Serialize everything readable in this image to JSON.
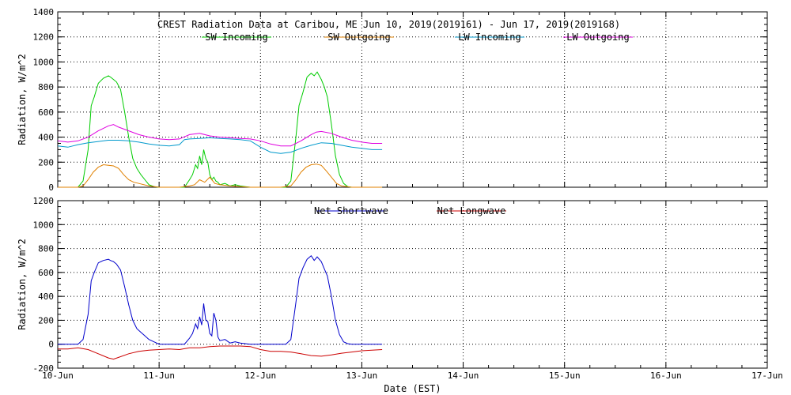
{
  "chart_data": [
    {
      "type": "line",
      "title": "CREST Radiation Data at Caribou, ME   Jun 10, 2019(2019161) - Jun 17, 2019(2019168)",
      "xlabel": "",
      "ylabel": "Radiation, W/m^2",
      "xlim": [
        0,
        7
      ],
      "ylim": [
        0,
        1400
      ],
      "yticks": [
        0,
        200,
        400,
        600,
        800,
        1000,
        1200,
        1400
      ],
      "grid": true,
      "legend": "top",
      "series": [
        {
          "name": "SW Incoming",
          "color": "#00cc00",
          "x": [
            0.0,
            0.15,
            0.2,
            0.25,
            0.3,
            0.33,
            0.36,
            0.4,
            0.45,
            0.5,
            0.52,
            0.55,
            0.58,
            0.62,
            0.66,
            0.7,
            0.74,
            0.78,
            0.82,
            0.86,
            0.9,
            0.95,
            1.0,
            1.05,
            1.1,
            1.2,
            1.25,
            1.3,
            1.33,
            1.36,
            1.38,
            1.4,
            1.42,
            1.44,
            1.46,
            1.48,
            1.5,
            1.52,
            1.54,
            1.56,
            1.58,
            1.6,
            1.65,
            1.7,
            1.75,
            1.8,
            1.85,
            1.9,
            1.95,
            2.0,
            2.1,
            2.2,
            2.25,
            2.3,
            2.35,
            2.38,
            2.42,
            2.46,
            2.5,
            2.53,
            2.56,
            2.6,
            2.63,
            2.66,
            2.7,
            2.74,
            2.78,
            2.82,
            2.86,
            2.9,
            2.95,
            3.0,
            3.1,
            3.2
          ],
          "y": [
            0,
            0,
            0,
            50,
            300,
            650,
            720,
            830,
            870,
            890,
            880,
            860,
            840,
            780,
            600,
            400,
            230,
            150,
            100,
            60,
            20,
            5,
            0,
            0,
            0,
            0,
            0,
            60,
            100,
            180,
            150,
            250,
            180,
            300,
            230,
            200,
            100,
            60,
            80,
            50,
            40,
            20,
            30,
            10,
            20,
            10,
            5,
            0,
            0,
            0,
            0,
            0,
            0,
            50,
            400,
            650,
            760,
            880,
            910,
            890,
            920,
            860,
            800,
            720,
            500,
            250,
            100,
            30,
            5,
            0,
            0,
            0,
            0,
            0
          ]
        },
        {
          "name": "SW Outgoing",
          "color": "#e08000",
          "x": [
            0.0,
            0.15,
            0.2,
            0.25,
            0.3,
            0.35,
            0.4,
            0.45,
            0.5,
            0.55,
            0.6,
            0.65,
            0.7,
            0.75,
            0.8,
            0.9,
            1.0,
            1.1,
            1.2,
            1.3,
            1.35,
            1.4,
            1.45,
            1.5,
            1.55,
            1.6,
            1.7,
            1.8,
            1.9,
            2.0,
            2.1,
            2.2,
            2.3,
            2.35,
            2.4,
            2.45,
            2.5,
            2.55,
            2.6,
            2.65,
            2.7,
            2.75,
            2.8,
            2.9,
            3.0,
            3.2
          ],
          "y": [
            0,
            0,
            0,
            10,
            60,
            120,
            160,
            180,
            175,
            170,
            150,
            100,
            60,
            40,
            30,
            10,
            0,
            0,
            0,
            10,
            20,
            60,
            40,
            80,
            30,
            20,
            10,
            5,
            0,
            0,
            0,
            0,
            10,
            60,
            120,
            160,
            180,
            185,
            175,
            130,
            80,
            30,
            10,
            0,
            0,
            0
          ]
        },
        {
          "name": "LW Incoming",
          "color": "#0099cc",
          "x": [
            0.0,
            0.1,
            0.2,
            0.3,
            0.4,
            0.5,
            0.6,
            0.7,
            0.8,
            0.9,
            1.0,
            1.1,
            1.2,
            1.25,
            1.3,
            1.4,
            1.5,
            1.6,
            1.7,
            1.8,
            1.9,
            2.0,
            2.1,
            2.2,
            2.3,
            2.4,
            2.5,
            2.6,
            2.7,
            2.8,
            2.9,
            3.0,
            3.1,
            3.2
          ],
          "y": [
            330,
            320,
            340,
            355,
            365,
            375,
            375,
            370,
            360,
            345,
            335,
            330,
            340,
            380,
            385,
            390,
            395,
            390,
            385,
            380,
            370,
            320,
            280,
            270,
            280,
            310,
            335,
            355,
            350,
            335,
            320,
            310,
            300,
            300
          ]
        },
        {
          "name": "LW Outgoing",
          "color": "#e000e0",
          "x": [
            0.0,
            0.1,
            0.2,
            0.3,
            0.4,
            0.5,
            0.55,
            0.6,
            0.7,
            0.8,
            0.9,
            1.0,
            1.1,
            1.2,
            1.3,
            1.4,
            1.5,
            1.6,
            1.7,
            1.8,
            1.9,
            2.0,
            2.1,
            2.2,
            2.3,
            2.4,
            2.5,
            2.55,
            2.6,
            2.7,
            2.8,
            2.9,
            3.0,
            3.1,
            3.2
          ],
          "y": [
            370,
            360,
            370,
            400,
            450,
            490,
            500,
            480,
            450,
            420,
            400,
            385,
            380,
            385,
            420,
            430,
            410,
            400,
            395,
            390,
            385,
            370,
            345,
            330,
            330,
            370,
            420,
            440,
            445,
            430,
            400,
            375,
            360,
            350,
            350
          ]
        }
      ]
    },
    {
      "type": "line",
      "title": "",
      "xlabel": "Date (EST)",
      "ylabel": "Radiation, W/m^2",
      "xlim": [
        0,
        7
      ],
      "ylim": [
        -200,
        1200
      ],
      "yticks": [
        -200,
        0,
        200,
        400,
        600,
        800,
        1000,
        1200
      ],
      "xticks": [
        0,
        1,
        2,
        3,
        4,
        5,
        6,
        7
      ],
      "xticklabels": [
        "10-Jun",
        "11-Jun",
        "12-Jun",
        "13-Jun",
        "14-Jun",
        "15-Jun",
        "16-Jun",
        "17-Jun"
      ],
      "grid": true,
      "legend": "top",
      "series": [
        {
          "name": "Net Shortwave",
          "color": "#0000cc",
          "x": [
            0.0,
            0.15,
            0.2,
            0.25,
            0.3,
            0.33,
            0.36,
            0.4,
            0.45,
            0.5,
            0.52,
            0.55,
            0.58,
            0.62,
            0.66,
            0.7,
            0.74,
            0.78,
            0.82,
            0.86,
            0.9,
            0.95,
            1.0,
            1.1,
            1.2,
            1.25,
            1.3,
            1.33,
            1.36,
            1.38,
            1.4,
            1.42,
            1.44,
            1.46,
            1.48,
            1.5,
            1.52,
            1.54,
            1.56,
            1.58,
            1.6,
            1.65,
            1.7,
            1.75,
            1.8,
            1.85,
            1.9,
            1.95,
            2.0,
            2.1,
            2.2,
            2.25,
            2.3,
            2.35,
            2.38,
            2.42,
            2.46,
            2.5,
            2.53,
            2.56,
            2.6,
            2.63,
            2.66,
            2.7,
            2.74,
            2.78,
            2.82,
            2.86,
            2.9,
            2.95,
            3.0,
            3.1,
            3.2
          ],
          "y": [
            0,
            0,
            0,
            40,
            250,
            530,
            600,
            680,
            700,
            710,
            700,
            690,
            670,
            620,
            480,
            330,
            200,
            130,
            100,
            70,
            40,
            20,
            0,
            0,
            0,
            0,
            50,
            90,
            170,
            130,
            230,
            160,
            340,
            200,
            190,
            90,
            70,
            260,
            200,
            60,
            30,
            40,
            10,
            20,
            10,
            5,
            0,
            0,
            0,
            0,
            0,
            0,
            40,
            350,
            550,
            640,
            710,
            740,
            700,
            730,
            690,
            630,
            570,
            400,
            200,
            80,
            20,
            5,
            0,
            0,
            0,
            0,
            0
          ]
        },
        {
          "name": "Net Longwave",
          "color": "#cc0000",
          "x": [
            0.0,
            0.1,
            0.2,
            0.3,
            0.4,
            0.5,
            0.55,
            0.6,
            0.7,
            0.8,
            0.9,
            1.0,
            1.1,
            1.2,
            1.3,
            1.4,
            1.5,
            1.6,
            1.7,
            1.8,
            1.9,
            2.0,
            2.1,
            2.2,
            2.3,
            2.4,
            2.5,
            2.6,
            2.7,
            2.8,
            2.9,
            3.0,
            3.1,
            3.2
          ],
          "y": [
            -40,
            -40,
            -30,
            -45,
            -80,
            -115,
            -125,
            -110,
            -80,
            -60,
            -50,
            -45,
            -40,
            -45,
            -30,
            -30,
            -20,
            -15,
            -15,
            -15,
            -20,
            -45,
            -60,
            -60,
            -65,
            -80,
            -95,
            -100,
            -90,
            -75,
            -65,
            -55,
            -50,
            -45
          ]
        }
      ]
    }
  ]
}
